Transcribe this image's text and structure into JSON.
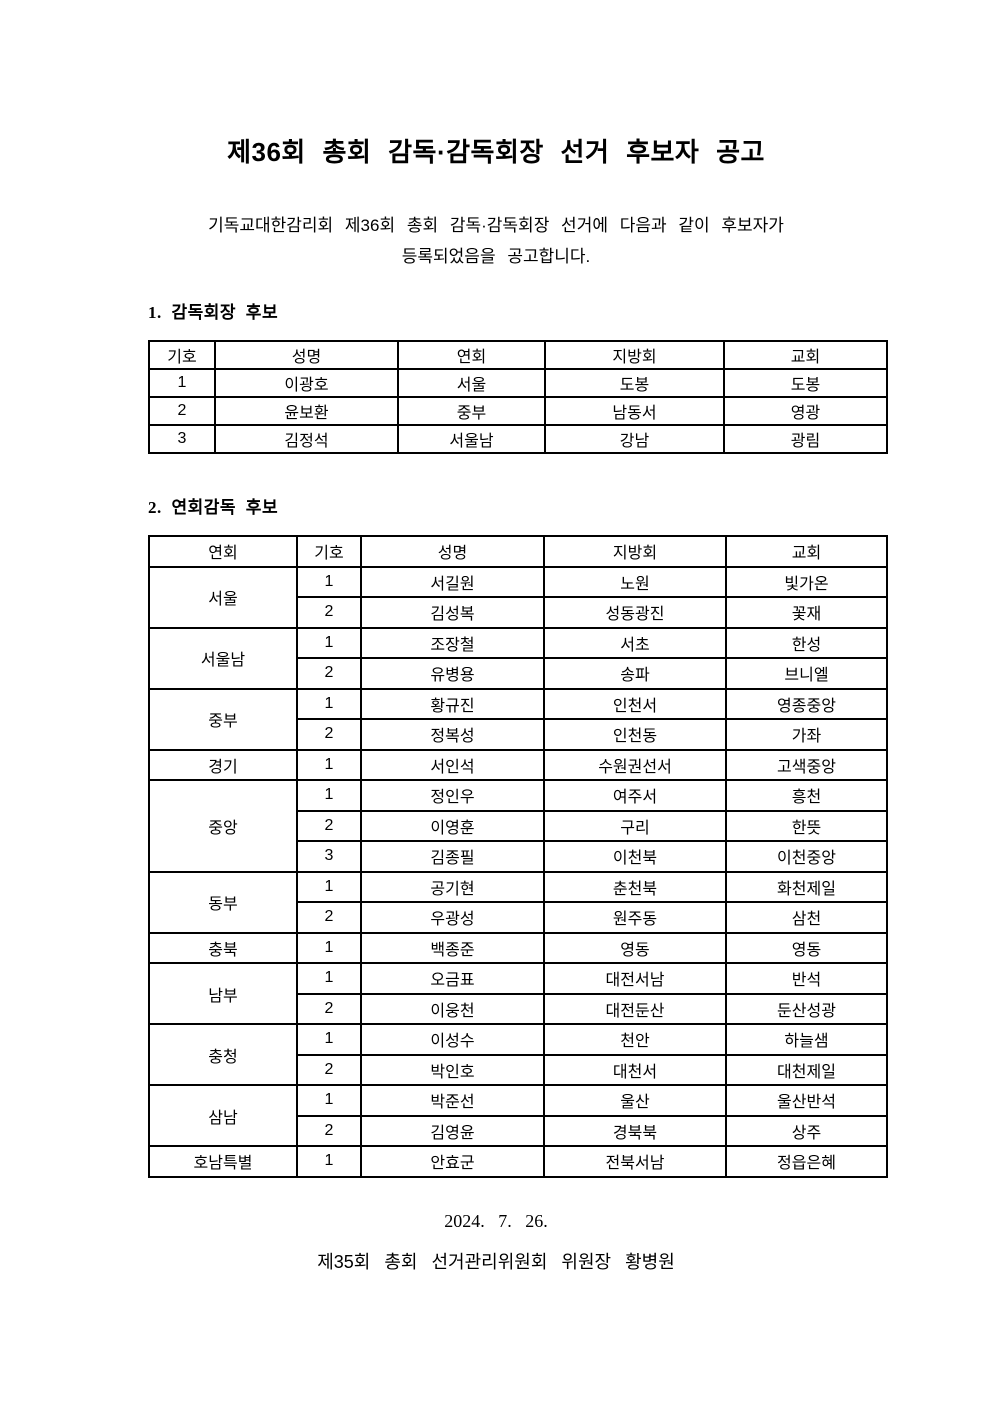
{
  "page": {
    "title": "제36회 총회 감독·감독회장 선거 후보자 공고",
    "intro_lines": [
      "기독교대한감리회 제36회 총회 감독·감독회장 선거에 다음과 같이 후보자가",
      "등록되었음을 공고합니다."
    ],
    "date": "2024. 7. 26.",
    "signature": "제35회 총회 선거관리위원회 위원장 황병원"
  },
  "section1": {
    "heading": "1. 감독회장 후보",
    "table": {
      "headers": [
        "기호",
        "성명",
        "연회",
        "지방회",
        "교회"
      ],
      "rows": [
        [
          "1",
          "이광호",
          "서울",
          "도봉",
          "도봉"
        ],
        [
          "2",
          "윤보환",
          "중부",
          "남동서",
          "영광"
        ],
        [
          "3",
          "김정석",
          "서울남",
          "강남",
          "광림"
        ]
      ]
    }
  },
  "section2": {
    "heading": "2. 연회감독 후보",
    "table": {
      "headers": [
        "연회",
        "기호",
        "성명",
        "지방회",
        "교회"
      ],
      "groups": [
        {
          "conference": "서울",
          "rows": [
            [
              "1",
              "서길원",
              "노원",
              "빛가온"
            ],
            [
              "2",
              "김성복",
              "성동광진",
              "꽃재"
            ]
          ]
        },
        {
          "conference": "서울남",
          "rows": [
            [
              "1",
              "조장철",
              "서초",
              "한성"
            ],
            [
              "2",
              "유병용",
              "송파",
              "브니엘"
            ]
          ]
        },
        {
          "conference": "중부",
          "rows": [
            [
              "1",
              "황규진",
              "인천서",
              "영종중앙"
            ],
            [
              "2",
              "정복성",
              "인천동",
              "가좌"
            ]
          ]
        },
        {
          "conference": "경기",
          "rows": [
            [
              "1",
              "서인석",
              "수원권선서",
              "고색중앙"
            ]
          ]
        },
        {
          "conference": "중앙",
          "rows": [
            [
              "1",
              "정인우",
              "여주서",
              "흥천"
            ],
            [
              "2",
              "이영훈",
              "구리",
              "한뜻"
            ],
            [
              "3",
              "김종필",
              "이천북",
              "이천중앙"
            ]
          ]
        },
        {
          "conference": "동부",
          "rows": [
            [
              "1",
              "공기현",
              "춘천북",
              "화천제일"
            ],
            [
              "2",
              "우광성",
              "원주동",
              "삼천"
            ]
          ]
        },
        {
          "conference": "충북",
          "rows": [
            [
              "1",
              "백종준",
              "영동",
              "영동"
            ]
          ]
        },
        {
          "conference": "남부",
          "rows": [
            [
              "1",
              "오금표",
              "대전서남",
              "반석"
            ],
            [
              "2",
              "이웅천",
              "대전둔산",
              "둔산성광"
            ]
          ]
        },
        {
          "conference": "충청",
          "rows": [
            [
              "1",
              "이성수",
              "천안",
              "하늘샘"
            ],
            [
              "2",
              "박인호",
              "대천서",
              "대천제일"
            ]
          ]
        },
        {
          "conference": "삼남",
          "rows": [
            [
              "1",
              "박준선",
              "울산",
              "울산반석"
            ],
            [
              "2",
              "김영윤",
              "경북북",
              "상주"
            ]
          ]
        },
        {
          "conference": "호남특별",
          "rows": [
            [
              "1",
              "안효군",
              "전북서남",
              "정읍은혜"
            ]
          ]
        }
      ]
    }
  }
}
